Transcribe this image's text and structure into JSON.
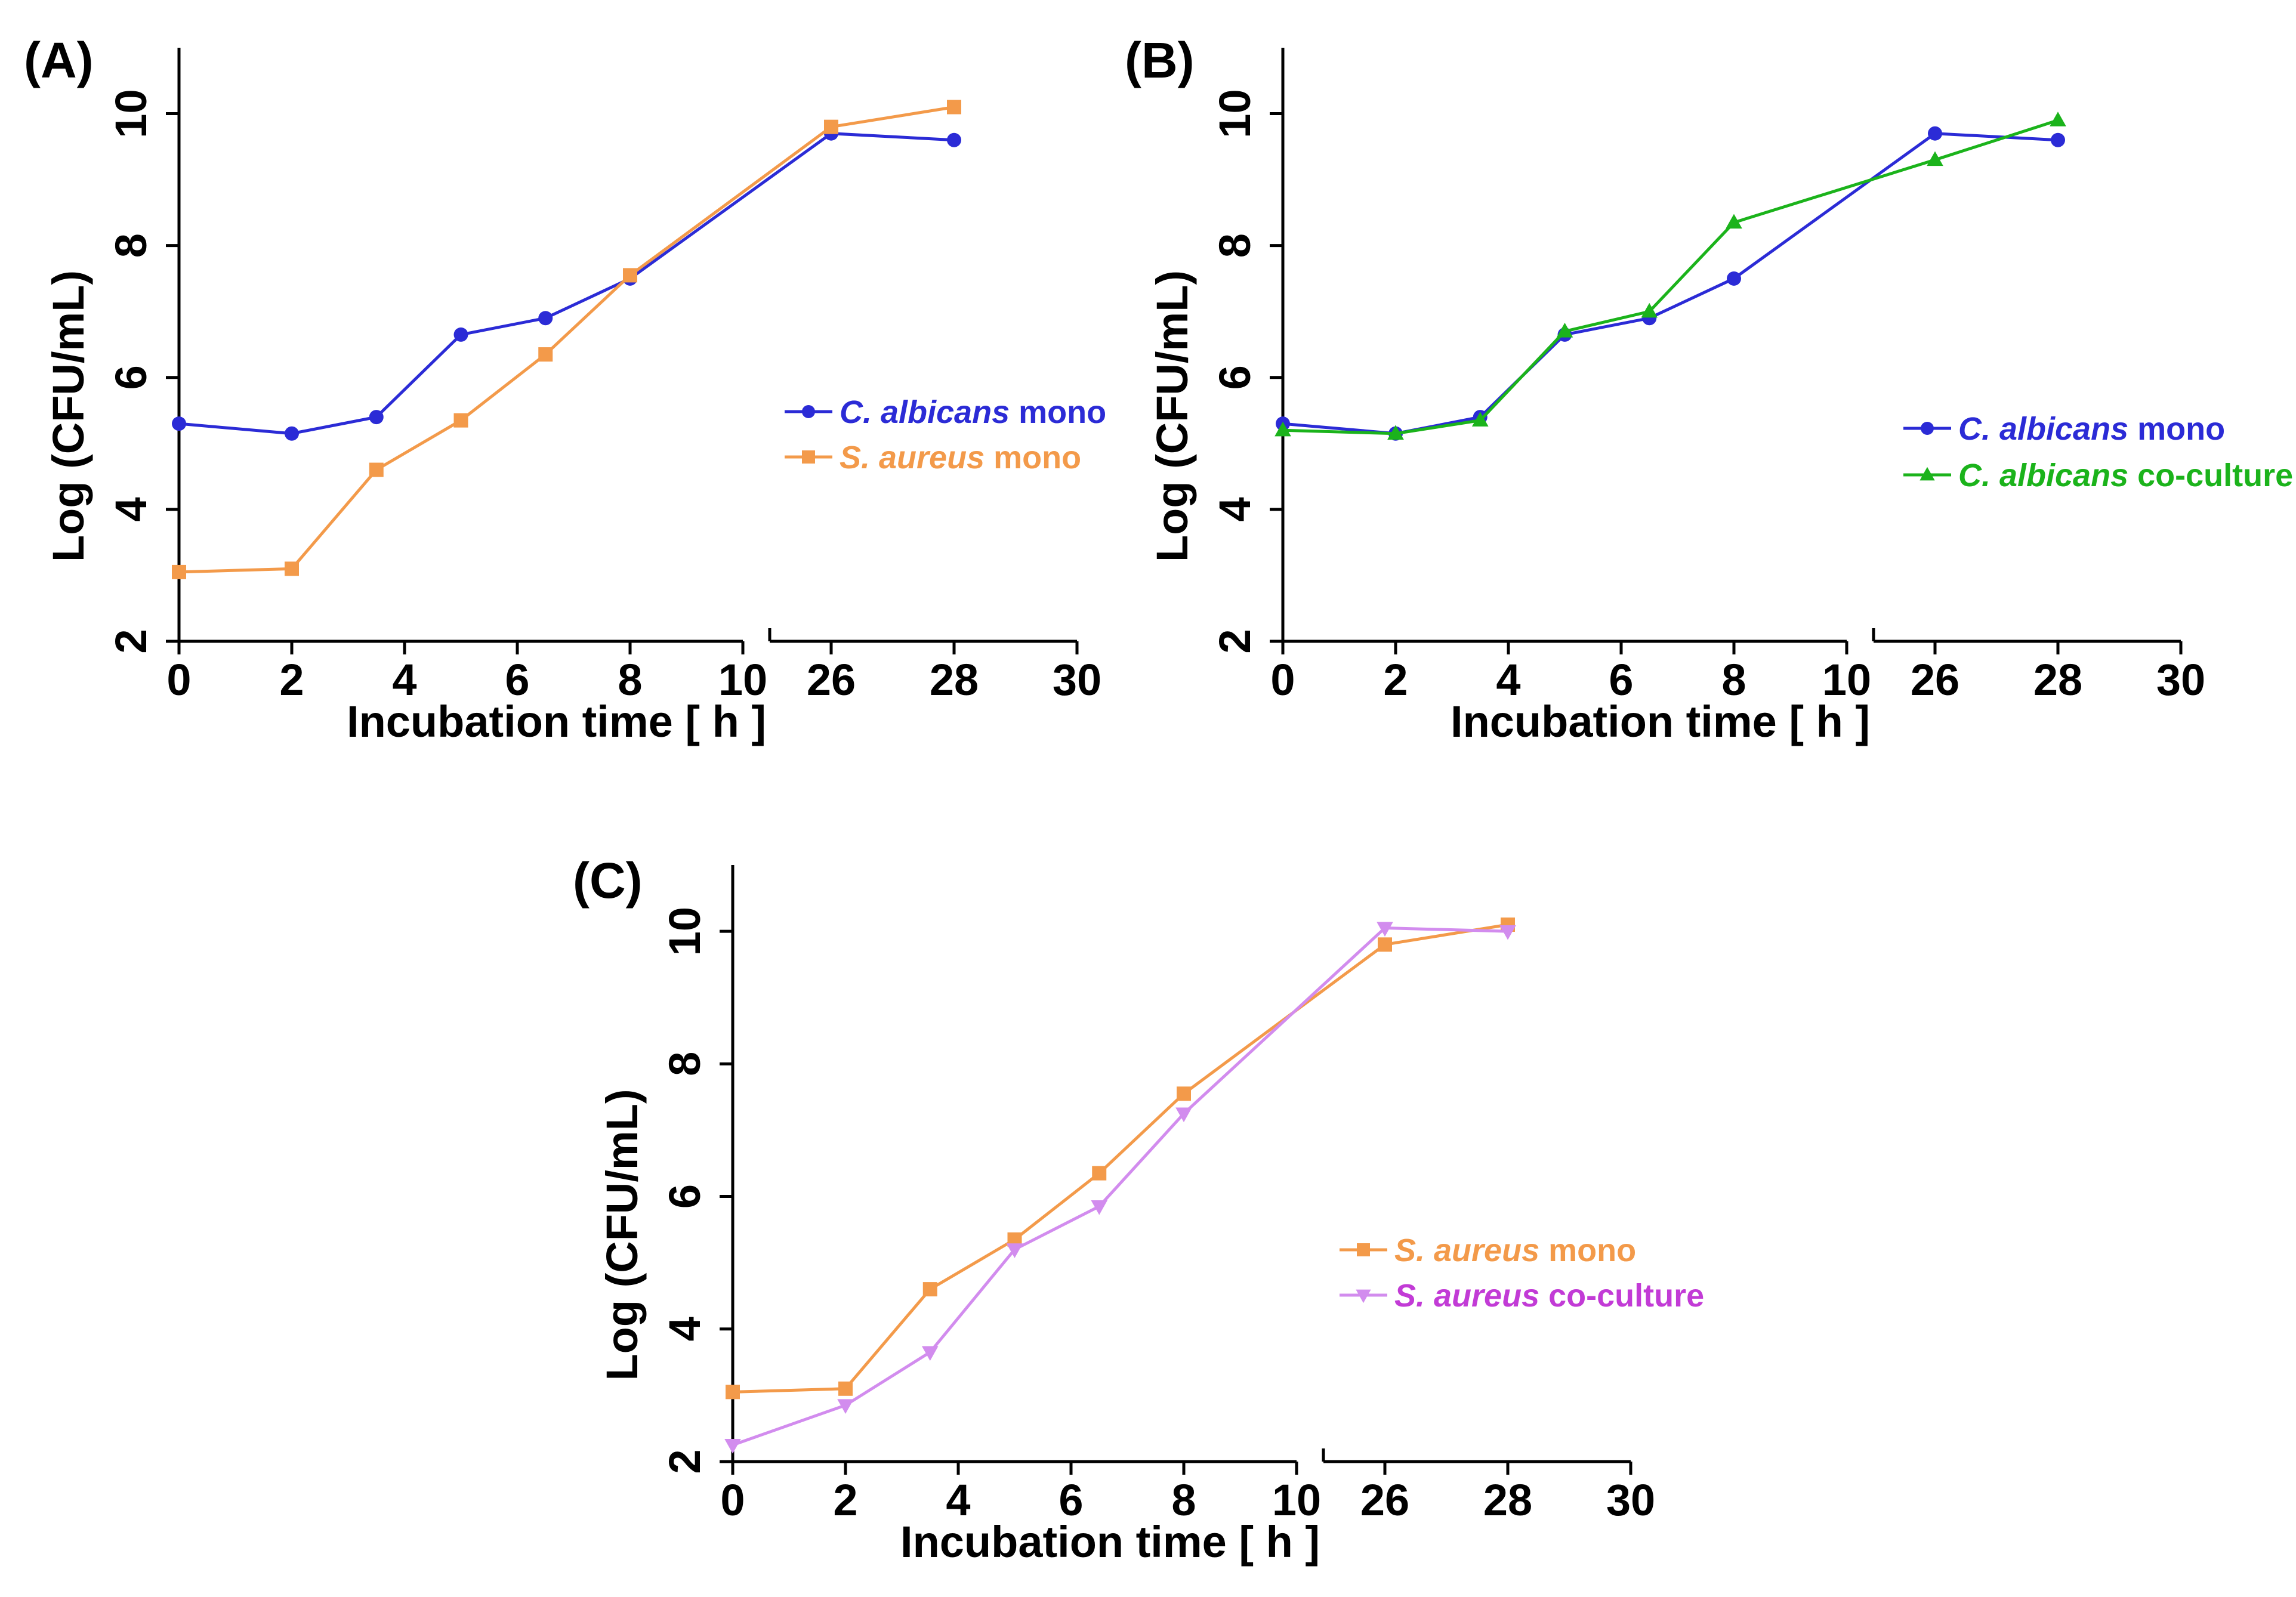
{
  "figure": {
    "axis_color": "#000000"
  },
  "chart_data": [
    {
      "type": "line",
      "panel_label": "(A)",
      "xlabel": "Incubation time  [ h ]",
      "ylabel": "Log  (CFU/mL)",
      "x_axis_break": [
        10,
        26
      ],
      "xticks": [
        0,
        2,
        4,
        6,
        8,
        10,
        26,
        28,
        30
      ],
      "yticks": [
        2,
        4,
        6,
        8,
        10
      ],
      "ylim": [
        2,
        11
      ],
      "grid": false,
      "legend_position": "right",
      "series": [
        {
          "name_italic": "C. albicans",
          "name_rest": " mono",
          "color": "#2b2bd6",
          "marker": "circle",
          "x": [
            0,
            2,
            3.5,
            5,
            6.5,
            8,
            26,
            28
          ],
          "y": [
            5.3,
            5.15,
            5.4,
            6.65,
            6.9,
            7.5,
            9.7,
            9.6
          ]
        },
        {
          "name_italic": "S. aureus",
          "name_rest": " mono",
          "color": "#f39a4a",
          "marker": "square",
          "x": [
            0,
            2,
            3.5,
            5,
            6.5,
            8,
            26,
            28
          ],
          "y": [
            3.05,
            3.1,
            4.6,
            5.35,
            6.35,
            7.55,
            9.8,
            10.1
          ]
        }
      ]
    },
    {
      "type": "line",
      "panel_label": "(B)",
      "xlabel": "Incubation time  [ h ]",
      "ylabel": "Log  (CFU/mL)",
      "x_axis_break": [
        10,
        26
      ],
      "xticks": [
        0,
        2,
        4,
        6,
        8,
        10,
        26,
        28,
        30
      ],
      "yticks": [
        2,
        4,
        6,
        8,
        10
      ],
      "ylim": [
        2,
        11
      ],
      "grid": false,
      "legend_position": "right",
      "series": [
        {
          "name_italic": "C. albicans",
          "name_rest": " mono",
          "color": "#2b2bd6",
          "marker": "circle",
          "x": [
            0,
            2,
            3.5,
            5,
            6.5,
            8,
            26,
            28
          ],
          "y": [
            5.3,
            5.15,
            5.4,
            6.65,
            6.9,
            7.5,
            9.7,
            9.6
          ]
        },
        {
          "name_italic": "C. albicans",
          "name_rest": " co-culture",
          "color": "#1bb31b",
          "marker": "triangle-up",
          "x": [
            0,
            2,
            3.5,
            5,
            6.5,
            8,
            26,
            28
          ],
          "y": [
            5.2,
            5.15,
            5.35,
            6.7,
            7.0,
            8.35,
            9.3,
            9.9
          ]
        }
      ]
    },
    {
      "type": "line",
      "panel_label": "(C)",
      "xlabel": "Incubation time  [ h ]",
      "ylabel": "Log  (CFU/mL)",
      "x_axis_break": [
        10,
        26
      ],
      "xticks": [
        0,
        2,
        4,
        6,
        8,
        10,
        26,
        28,
        30
      ],
      "yticks": [
        2,
        4,
        6,
        8,
        10
      ],
      "ylim": [
        2,
        11
      ],
      "grid": false,
      "legend_position": "right",
      "series": [
        {
          "name_italic": "S. aureus",
          "name_rest": " mono",
          "color": "#f39a4a",
          "marker": "square",
          "x": [
            0,
            2,
            3.5,
            5,
            6.5,
            8,
            26,
            28
          ],
          "y": [
            3.05,
            3.1,
            4.6,
            5.35,
            6.35,
            7.55,
            9.8,
            10.1
          ]
        },
        {
          "name_italic": "S. aureus",
          "name_rest": " co-culture",
          "color": "#d28cee",
          "text_color": "#c23bd6",
          "marker": "triangle-down",
          "x": [
            0,
            2,
            3.5,
            5,
            6.5,
            8,
            26,
            28
          ],
          "y": [
            2.25,
            2.85,
            3.65,
            5.2,
            5.85,
            7.25,
            10.05,
            10.0
          ]
        }
      ]
    }
  ]
}
